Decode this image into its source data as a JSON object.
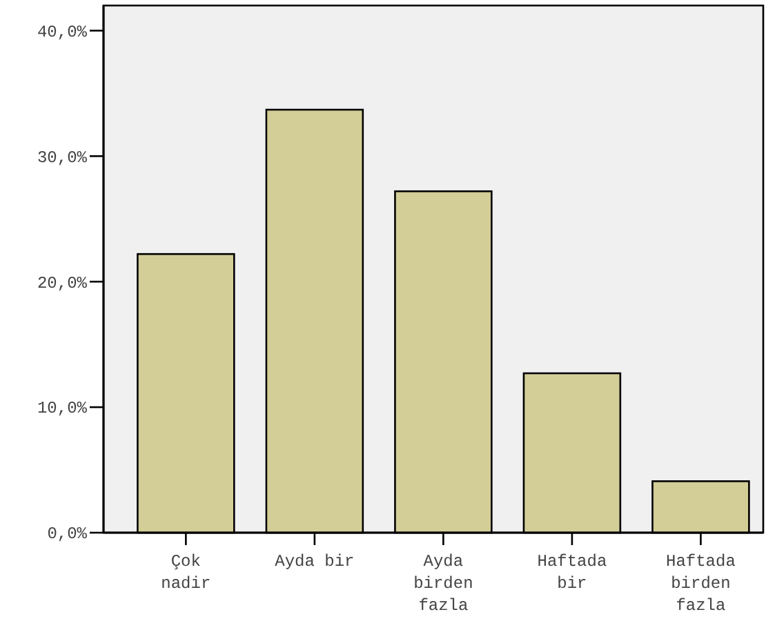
{
  "chart_data": {
    "type": "bar",
    "categories": [
      "Çok nadir",
      "Ayda bir",
      "Ayda birden fazla",
      "Haftada bir",
      "Haftada birden fazla"
    ],
    "values": [
      22.2,
      33.7,
      27.2,
      12.7,
      4.1
    ],
    "color": "#d3ce97",
    "ylim": [
      0,
      42
    ],
    "yticks": [
      {
        "value": 0,
        "label": "0,0%"
      },
      {
        "value": 10,
        "label": "10,0%"
      },
      {
        "value": 20,
        "label": "20,0%"
      },
      {
        "value": 30,
        "label": "30,0%"
      },
      {
        "value": 40,
        "label": "40,0%"
      }
    ],
    "grid": false
  }
}
